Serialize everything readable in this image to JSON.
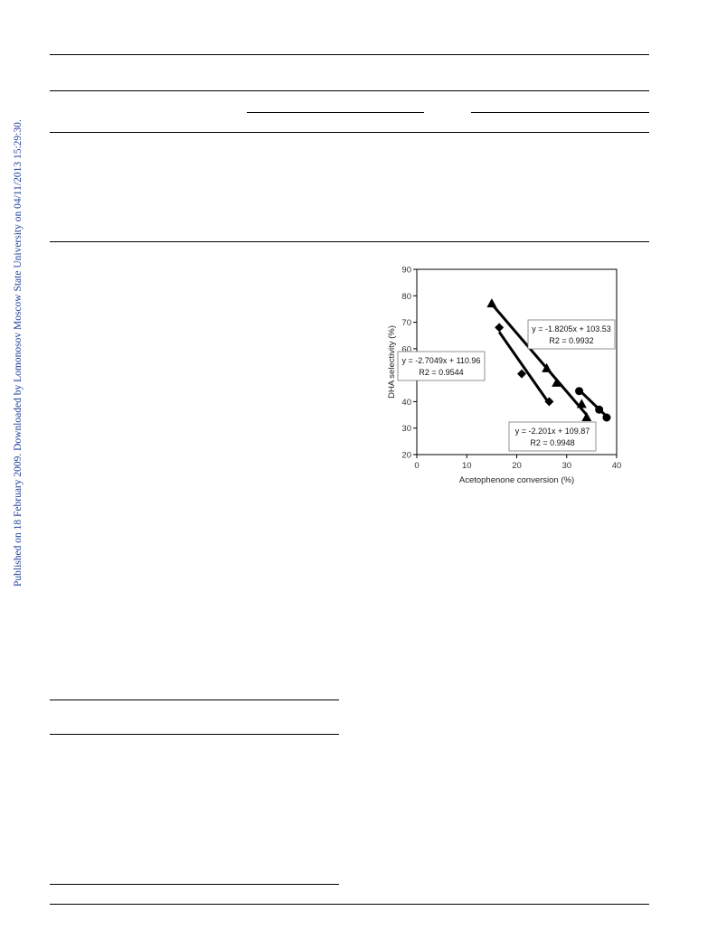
{
  "side_note": "Published on 18 February 2009. Downloaded by Lomonosov Moscow State University on 04/11/2013 15:29:30.",
  "chart_data": {
    "type": "scatter",
    "xlabel": "Acetophenone conversion (%)",
    "ylabel": "DHA selectivity (%)",
    "xlim": [
      0,
      40
    ],
    "ylim": [
      20,
      90
    ],
    "xticks": [
      0,
      10,
      20,
      30,
      40
    ],
    "yticks": [
      20,
      30,
      40,
      50,
      60,
      70,
      80,
      90
    ],
    "grid": false,
    "series": [
      {
        "marker": "diamond",
        "points": [
          [
            16.5,
            68
          ],
          [
            21,
            50.5
          ],
          [
            26.5,
            40
          ]
        ],
        "trendline": [
          [
            16.5,
            66.3
          ],
          [
            26.5,
            39.3
          ]
        ],
        "equation": "y = -2.7049x + 110.96",
        "r2": "R2 = 0.9544"
      },
      {
        "marker": "triangle",
        "points": [
          [
            15,
            77
          ],
          [
            26,
            52.5
          ],
          [
            28,
            47
          ],
          [
            33,
            39
          ],
          [
            34,
            34
          ]
        ],
        "trendline": [
          [
            15,
            76.9
          ],
          [
            34,
            35.0
          ]
        ],
        "equation": "y = -2.201x + 109.87",
        "r2": "R2 = 0.9948"
      },
      {
        "marker": "circle",
        "points": [
          [
            32.5,
            44
          ],
          [
            36.5,
            37
          ],
          [
            38,
            34
          ]
        ],
        "trendline": [
          [
            32.5,
            44.4
          ],
          [
            38,
            34.4
          ]
        ],
        "equation": "y = -1.8205x + 103.53",
        "r2": "R2 = 0.9932"
      }
    ]
  }
}
